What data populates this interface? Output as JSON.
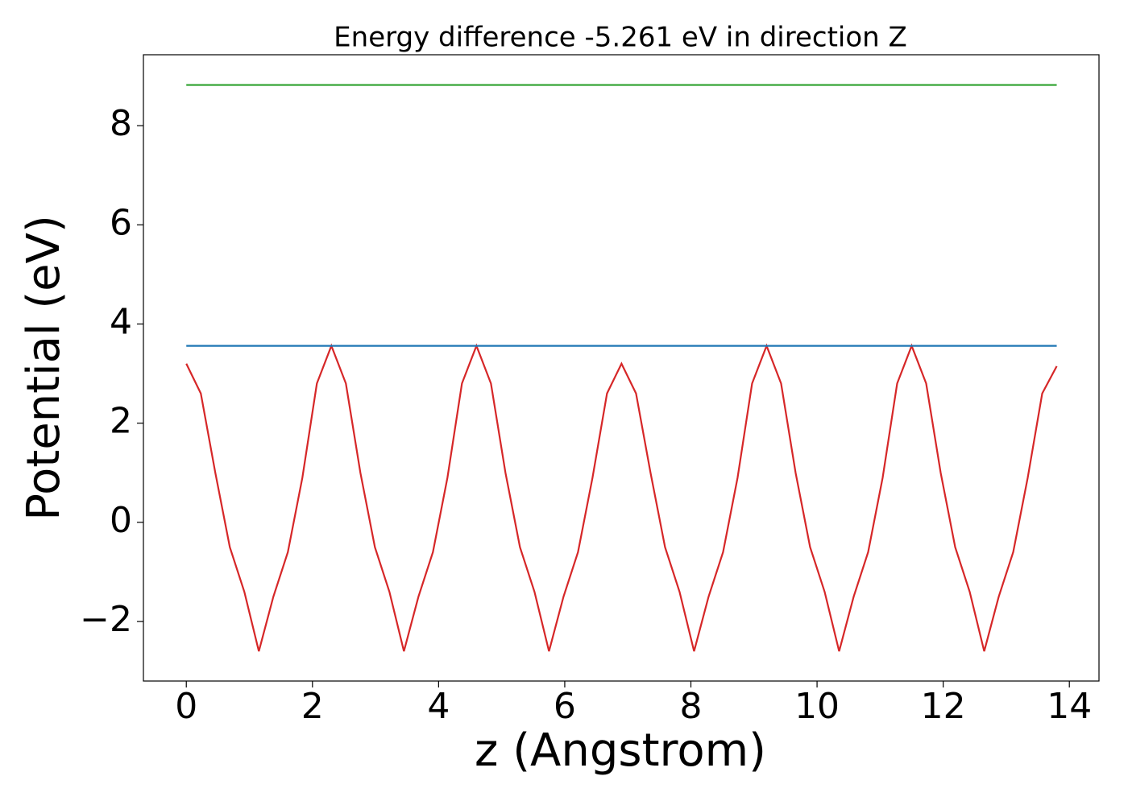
{
  "chart_data": {
    "type": "line",
    "title": "Energy difference -5.261 eV in direction Z",
    "x_label": "z (Angstrom)",
    "y_label": "Potential (eV)",
    "xlim": [
      -0.68,
      14.47
    ],
    "ylim": [
      -3.2,
      9.43
    ],
    "xticks": [
      0,
      2,
      4,
      6,
      8,
      10,
      12,
      14
    ],
    "yticks": [
      {
        "value": -2,
        "label": "−2"
      },
      0,
      2,
      4,
      6,
      8
    ],
    "series": [
      {
        "color": "#d62728",
        "x": [
          0,
          0.23,
          0.46,
          0.69,
          0.92,
          1.15,
          1.38,
          1.61,
          1.84,
          2.07,
          2.3,
          2.53,
          2.76,
          2.99,
          3.22,
          3.45,
          3.68,
          3.91,
          4.14,
          4.37,
          4.6,
          4.83,
          5.06,
          5.29,
          5.52,
          5.75,
          5.98,
          6.21,
          6.44,
          6.67,
          6.9,
          7.13,
          7.36,
          7.59,
          7.82,
          8.05,
          8.28,
          8.51,
          8.74,
          8.97,
          9.2,
          9.43,
          9.66,
          9.89,
          10.12,
          10.35,
          10.58,
          10.81,
          11.04,
          11.27,
          11.5,
          11.73,
          11.96,
          12.19,
          12.42,
          12.65,
          12.88,
          13.11,
          13.34,
          13.57,
          13.8
        ],
        "values": [
          3.2,
          2.6,
          1.0,
          -0.5,
          -1.4,
          -2.6,
          -1.5,
          -0.6,
          0.9,
          2.8,
          3.56,
          2.8,
          1.0,
          -0.5,
          -1.4,
          -2.6,
          -1.5,
          -0.6,
          0.9,
          2.8,
          3.56,
          2.8,
          1.0,
          -0.5,
          -1.4,
          -2.6,
          -1.5,
          -0.6,
          0.9,
          2.6,
          3.2,
          2.6,
          1.0,
          -0.5,
          -1.4,
          -2.6,
          -1.5,
          -0.6,
          0.9,
          2.8,
          3.56,
          2.8,
          1.0,
          -0.5,
          -1.4,
          -2.6,
          -1.5,
          -0.6,
          0.9,
          2.8,
          3.56,
          2.8,
          1.0,
          -0.5,
          -1.4,
          -2.6,
          -1.5,
          -0.6,
          0.9,
          2.6,
          3.15
        ]
      },
      {
        "color": "#1f77b4",
        "x": [
          0,
          13.8
        ],
        "values": [
          3.56,
          3.56
        ]
      },
      {
        "color": "#2ca02c",
        "x": [
          0,
          13.8
        ],
        "values": [
          8.82,
          8.82
        ]
      }
    ]
  }
}
